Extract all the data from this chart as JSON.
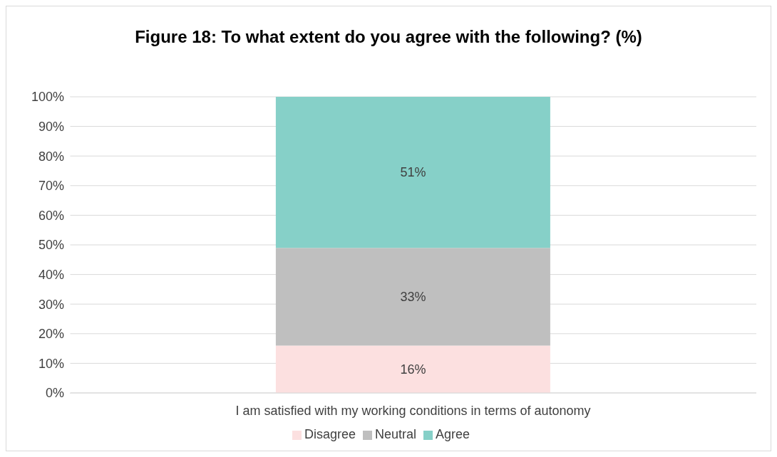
{
  "chart_data": {
    "type": "bar",
    "title": "Figure 18: To what extent do you agree with the following? (%)",
    "stacked": true,
    "categories": [
      "I am satisfied with my working conditions in terms of autonomy"
    ],
    "series": [
      {
        "name": "Disagree",
        "color": "#fce0e0",
        "values": [
          16
        ],
        "value_labels": [
          "16%"
        ]
      },
      {
        "name": "Neutral",
        "color": "#bfbfbf",
        "values": [
          33
        ],
        "value_labels": [
          "33%"
        ]
      },
      {
        "name": "Agree",
        "color": "#86d0c8",
        "values": [
          51
        ],
        "value_labels": [
          "51%"
        ]
      }
    ],
    "ylim": [
      0,
      100
    ],
    "yticks": [
      {
        "value": 0,
        "label": "0%"
      },
      {
        "value": 10,
        "label": "10%"
      },
      {
        "value": 20,
        "label": "20%"
      },
      {
        "value": 30,
        "label": "30%"
      },
      {
        "value": 40,
        "label": "40%"
      },
      {
        "value": 50,
        "label": "50%"
      },
      {
        "value": 60,
        "label": "60%"
      },
      {
        "value": 70,
        "label": "70%"
      },
      {
        "value": 80,
        "label": "80%"
      },
      {
        "value": 90,
        "label": "90%"
      },
      {
        "value": 100,
        "label": "100%"
      }
    ],
    "grid": "y",
    "legend": "bottom"
  }
}
